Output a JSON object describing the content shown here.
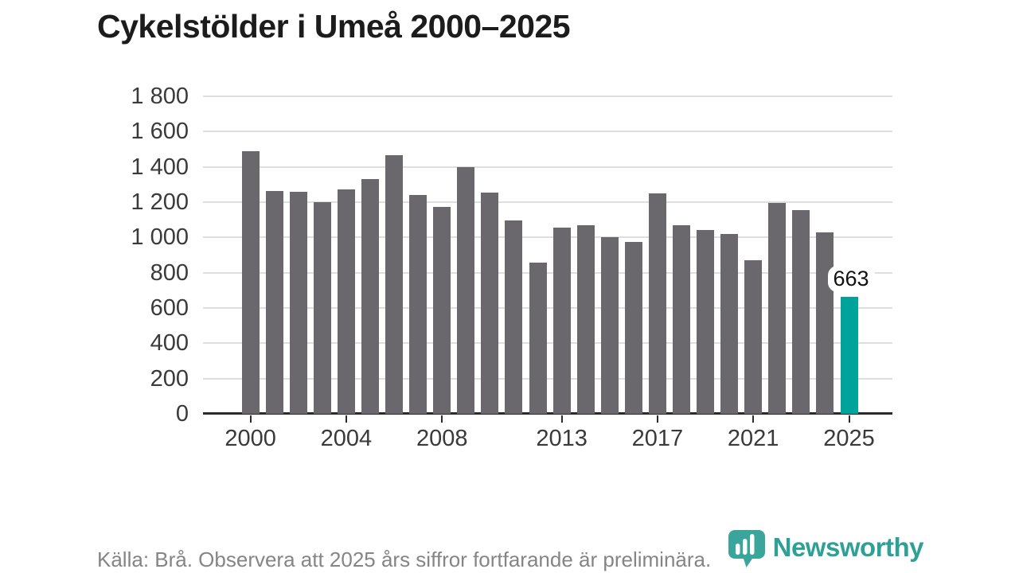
{
  "page": {
    "title": "Cykelstölder i Umeå 2000–2025",
    "source_note": "Källa: Brå. Observera att 2025 års siffror fortfarande är preliminära.",
    "brand": {
      "name": "Newsworthy"
    }
  },
  "colors": {
    "bar": "#6b686d",
    "highlight_bar": "#00a29c",
    "brand_teal": "#2fa096",
    "gridline": "#dedede",
    "axis_line": "#2b2b2b",
    "title_text": "#1c1c1c",
    "axis_text": "#3a3a3a",
    "source_text": "#858585",
    "background": "#ffffff"
  },
  "chart_data": {
    "type": "bar",
    "title": "Cykelstölder i Umeå 2000–2025",
    "x": [
      2000,
      2001,
      2002,
      2003,
      2004,
      2005,
      2006,
      2007,
      2008,
      2009,
      2010,
      2011,
      2012,
      2013,
      2014,
      2015,
      2016,
      2017,
      2018,
      2019,
      2020,
      2021,
      2022,
      2023,
      2024,
      2025
    ],
    "values": [
      1490,
      1265,
      1260,
      1200,
      1270,
      1330,
      1465,
      1240,
      1175,
      1400,
      1255,
      1095,
      855,
      1055,
      1070,
      1000,
      975,
      1250,
      1070,
      1040,
      1020,
      870,
      1195,
      1155,
      1030,
      663
    ],
    "highlight_index": 25,
    "annotation": {
      "index": 25,
      "text": "663"
    },
    "xlabel": "",
    "ylabel": "",
    "ylim": [
      0,
      1800
    ],
    "grid": true,
    "legend": false,
    "y_ticks": [
      {
        "value": 0,
        "label": "0"
      },
      {
        "value": 200,
        "label": "200"
      },
      {
        "value": 400,
        "label": "400"
      },
      {
        "value": 600,
        "label": "600"
      },
      {
        "value": 800,
        "label": "800"
      },
      {
        "value": 1000,
        "label": "1 000"
      },
      {
        "value": 1200,
        "label": "1 200"
      },
      {
        "value": 1400,
        "label": "1 400"
      },
      {
        "value": 1600,
        "label": "1 600"
      },
      {
        "value": 1800,
        "label": "1 800"
      }
    ],
    "x_ticks": [
      {
        "year": 2000,
        "label": "2000"
      },
      {
        "year": 2004,
        "label": "2004"
      },
      {
        "year": 2008,
        "label": "2008"
      },
      {
        "year": 2013,
        "label": "2013"
      },
      {
        "year": 2017,
        "label": "2017"
      },
      {
        "year": 2021,
        "label": "2021"
      },
      {
        "year": 2025,
        "label": "2025"
      }
    ]
  }
}
